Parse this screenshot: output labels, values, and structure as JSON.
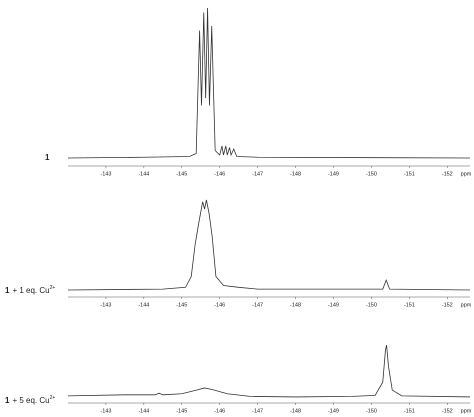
{
  "chart_data": [
    {
      "type": "line",
      "label": {
        "compound": "1"
      },
      "xlabel": "ppm",
      "xlim": [
        -142.0,
        -152.6
      ],
      "ylim": [
        0,
        100
      ],
      "xticks": [
        -143,
        -144,
        -145,
        -146,
        -147,
        -148,
        -149,
        -150,
        -151,
        -152
      ],
      "color": "#333333",
      "x": [
        -142.0,
        -144.0,
        -145.2,
        -145.38,
        -145.47,
        -145.52,
        -145.58,
        -145.63,
        -145.68,
        -145.73,
        -145.79,
        -145.88,
        -146.0,
        -146.06,
        -146.1,
        -146.16,
        -146.2,
        -146.26,
        -146.3,
        -146.37,
        -146.45,
        -147.0,
        -152.6
      ],
      "values": [
        0,
        0.5,
        1,
        3,
        85,
        35,
        97,
        40,
        100,
        35,
        88,
        5,
        2,
        8,
        2,
        8,
        2,
        7,
        2,
        6,
        1,
        0.5,
        0
      ]
    },
    {
      "type": "line",
      "label": {
        "compound": "1",
        "rest": "+ 1 eq. Cu",
        "charge": "2+"
      },
      "xlabel": "ppm",
      "xlim": [
        -142.0,
        -152.6
      ],
      "ylim": [
        0,
        100
      ],
      "xticks": [
        -143,
        -144,
        -145,
        -146,
        -147,
        -148,
        -149,
        -150,
        -151,
        -152
      ],
      "color": "#333333",
      "x": [
        -142.0,
        -144.5,
        -145.1,
        -145.25,
        -145.35,
        -145.45,
        -145.55,
        -145.6,
        -145.65,
        -145.72,
        -145.8,
        -145.9,
        -146.1,
        -146.5,
        -147.0,
        -150.3,
        -150.39,
        -150.48,
        -152.6
      ],
      "values": [
        0,
        1,
        3,
        15,
        50,
        75,
        98,
        90,
        100,
        85,
        60,
        15,
        5,
        3,
        1,
        1,
        11,
        1,
        0
      ]
    },
    {
      "type": "line",
      "label": {
        "compound": "1",
        "rest": "+ 5 eq. Cu",
        "charge": "2+"
      },
      "xlabel": "ppm",
      "xlim": [
        -142.0,
        -152.6
      ],
      "ylim": [
        0,
        100
      ],
      "xticks": [
        -143,
        -144,
        -145,
        -146,
        -147,
        -148,
        -149,
        -150,
        -151,
        -152
      ],
      "color": "#333333",
      "x": [
        -142.0,
        -143.5,
        -144.3,
        -144.4,
        -144.5,
        -145.0,
        -145.4,
        -145.6,
        -145.8,
        -146.2,
        -146.8,
        -148.0,
        -149.5,
        -150.1,
        -150.3,
        -150.37,
        -150.4,
        -150.45,
        -150.55,
        -150.8,
        -152.6
      ],
      "values": [
        4,
        6,
        6,
        9,
        6,
        8,
        15,
        19,
        16,
        8,
        3,
        2,
        3,
        5,
        30,
        90,
        100,
        60,
        15,
        4,
        2
      ]
    }
  ]
}
